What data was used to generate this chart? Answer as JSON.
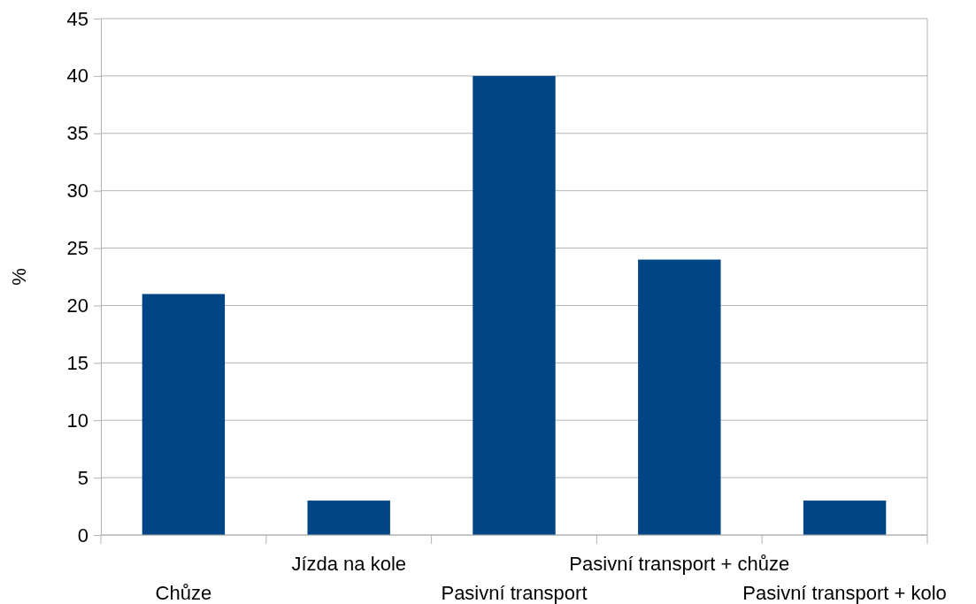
{
  "chart_data": {
    "type": "bar",
    "ylabel": "%",
    "categories": [
      "Chůze",
      "Jízda na kole",
      "Pasivní transport",
      "Pasivní transport + chůze",
      "Pasivní transport + kolo"
    ],
    "values": [
      21,
      3,
      40,
      24,
      3
    ],
    "color": "#004586",
    "ylim": [
      0,
      45
    ],
    "yticks": [
      0,
      5,
      10,
      15,
      20,
      25,
      30,
      35,
      40,
      45
    ],
    "grid": "y"
  }
}
